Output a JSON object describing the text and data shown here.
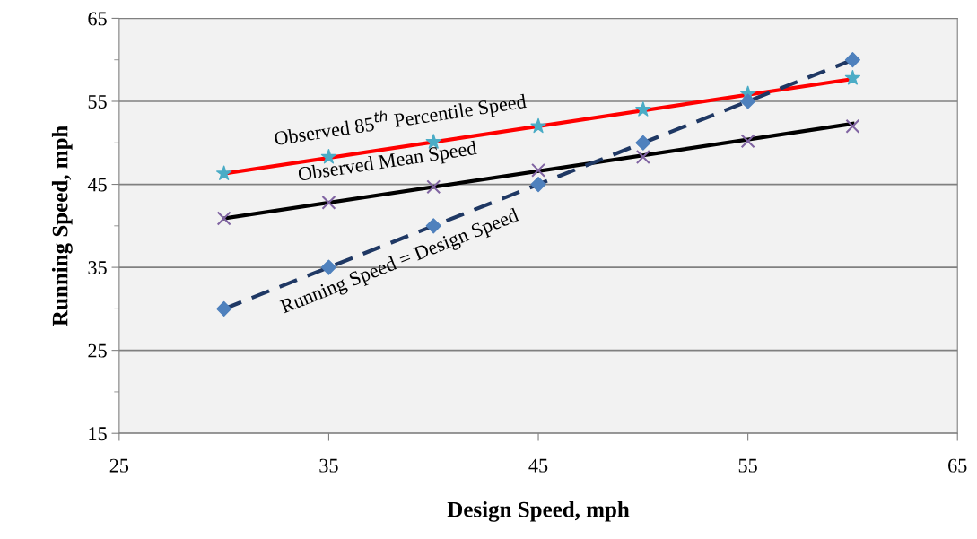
{
  "chart_data": {
    "type": "scatter",
    "xlabel": "Design Speed, mph",
    "ylabel": "Running Speed, mph",
    "xlim": [
      25,
      65
    ],
    "xticks": [
      25,
      35,
      45,
      55,
      65
    ],
    "ylim": [
      15,
      65
    ],
    "yticks": [
      15,
      {
        "value": 20,
        "label": null
      },
      25,
      {
        "value": 30,
        "label": null
      },
      35,
      {
        "value": 40,
        "label": null
      },
      45,
      {
        "value": 50,
        "label": null
      },
      55,
      {
        "value": 60,
        "label": null
      },
      65
    ],
    "grid": "y",
    "legend": false,
    "series": [
      {
        "type": "line",
        "color": "#ff0000",
        "x": [
          30,
          60
        ],
        "values": [
          46.3,
          57.7
        ],
        "line_style": "solid",
        "marker": "none"
      },
      {
        "type": "line",
        "color": "#000000",
        "x": [
          30,
          60
        ],
        "values": [
          40.9,
          52.3
        ],
        "line_style": "solid",
        "marker": "none"
      },
      {
        "type": "line",
        "color": "#1f3864",
        "x": [
          30,
          35,
          40,
          45,
          50,
          55,
          60
        ],
        "values": [
          30,
          35,
          40,
          45,
          50,
          55,
          60
        ],
        "line_style": "dashed",
        "marker": "none"
      },
      {
        "color": "#4bacc6",
        "x": [
          30,
          35,
          40,
          45,
          50,
          55,
          60
        ],
        "values": [
          46.3,
          48.3,
          50.1,
          52.0,
          54.0,
          55.9,
          57.8
        ],
        "marker": "star"
      },
      {
        "color": "#8064a2",
        "x": [
          30,
          35,
          40,
          45,
          50,
          55,
          60
        ],
        "values": [
          40.9,
          42.8,
          44.7,
          46.7,
          48.3,
          50.2,
          52.0
        ],
        "marker": "cross"
      },
      {
        "color": "#4f81bd",
        "x": [
          30,
          35,
          40,
          45,
          50,
          55,
          60
        ],
        "values": [
          30,
          35,
          40,
          45,
          50,
          55,
          60
        ],
        "marker": "diamond"
      }
    ],
    "annotations": [
      "Observed 85$^{th}$ Percentile Speed",
      "Observed Mean Speed",
      "Running Speed = Design Speed"
    ]
  }
}
